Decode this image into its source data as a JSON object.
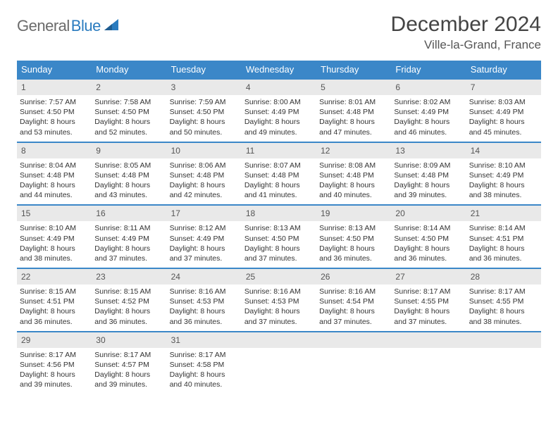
{
  "logo": {
    "general": "General",
    "blue": "Blue"
  },
  "title": "December 2024",
  "location": "Ville-la-Grand, France",
  "colors": {
    "header_bg": "#3b87c8",
    "header_fg": "#ffffff",
    "daynum_bg": "#e9e9e9",
    "border": "#3b87c8",
    "text": "#333333"
  },
  "day_names": [
    "Sunday",
    "Monday",
    "Tuesday",
    "Wednesday",
    "Thursday",
    "Friday",
    "Saturday"
  ],
  "weeks": [
    [
      {
        "n": "1",
        "sr": "Sunrise: 7:57 AM",
        "ss": "Sunset: 4:50 PM",
        "dl1": "Daylight: 8 hours",
        "dl2": "and 53 minutes."
      },
      {
        "n": "2",
        "sr": "Sunrise: 7:58 AM",
        "ss": "Sunset: 4:50 PM",
        "dl1": "Daylight: 8 hours",
        "dl2": "and 52 minutes."
      },
      {
        "n": "3",
        "sr": "Sunrise: 7:59 AM",
        "ss": "Sunset: 4:50 PM",
        "dl1": "Daylight: 8 hours",
        "dl2": "and 50 minutes."
      },
      {
        "n": "4",
        "sr": "Sunrise: 8:00 AM",
        "ss": "Sunset: 4:49 PM",
        "dl1": "Daylight: 8 hours",
        "dl2": "and 49 minutes."
      },
      {
        "n": "5",
        "sr": "Sunrise: 8:01 AM",
        "ss": "Sunset: 4:48 PM",
        "dl1": "Daylight: 8 hours",
        "dl2": "and 47 minutes."
      },
      {
        "n": "6",
        "sr": "Sunrise: 8:02 AM",
        "ss": "Sunset: 4:49 PM",
        "dl1": "Daylight: 8 hours",
        "dl2": "and 46 minutes."
      },
      {
        "n": "7",
        "sr": "Sunrise: 8:03 AM",
        "ss": "Sunset: 4:49 PM",
        "dl1": "Daylight: 8 hours",
        "dl2": "and 45 minutes."
      }
    ],
    [
      {
        "n": "8",
        "sr": "Sunrise: 8:04 AM",
        "ss": "Sunset: 4:48 PM",
        "dl1": "Daylight: 8 hours",
        "dl2": "and 44 minutes."
      },
      {
        "n": "9",
        "sr": "Sunrise: 8:05 AM",
        "ss": "Sunset: 4:48 PM",
        "dl1": "Daylight: 8 hours",
        "dl2": "and 43 minutes."
      },
      {
        "n": "10",
        "sr": "Sunrise: 8:06 AM",
        "ss": "Sunset: 4:48 PM",
        "dl1": "Daylight: 8 hours",
        "dl2": "and 42 minutes."
      },
      {
        "n": "11",
        "sr": "Sunrise: 8:07 AM",
        "ss": "Sunset: 4:48 PM",
        "dl1": "Daylight: 8 hours",
        "dl2": "and 41 minutes."
      },
      {
        "n": "12",
        "sr": "Sunrise: 8:08 AM",
        "ss": "Sunset: 4:48 PM",
        "dl1": "Daylight: 8 hours",
        "dl2": "and 40 minutes."
      },
      {
        "n": "13",
        "sr": "Sunrise: 8:09 AM",
        "ss": "Sunset: 4:48 PM",
        "dl1": "Daylight: 8 hours",
        "dl2": "and 39 minutes."
      },
      {
        "n": "14",
        "sr": "Sunrise: 8:10 AM",
        "ss": "Sunset: 4:49 PM",
        "dl1": "Daylight: 8 hours",
        "dl2": "and 38 minutes."
      }
    ],
    [
      {
        "n": "15",
        "sr": "Sunrise: 8:10 AM",
        "ss": "Sunset: 4:49 PM",
        "dl1": "Daylight: 8 hours",
        "dl2": "and 38 minutes."
      },
      {
        "n": "16",
        "sr": "Sunrise: 8:11 AM",
        "ss": "Sunset: 4:49 PM",
        "dl1": "Daylight: 8 hours",
        "dl2": "and 37 minutes."
      },
      {
        "n": "17",
        "sr": "Sunrise: 8:12 AM",
        "ss": "Sunset: 4:49 PM",
        "dl1": "Daylight: 8 hours",
        "dl2": "and 37 minutes."
      },
      {
        "n": "18",
        "sr": "Sunrise: 8:13 AM",
        "ss": "Sunset: 4:50 PM",
        "dl1": "Daylight: 8 hours",
        "dl2": "and 37 minutes."
      },
      {
        "n": "19",
        "sr": "Sunrise: 8:13 AM",
        "ss": "Sunset: 4:50 PM",
        "dl1": "Daylight: 8 hours",
        "dl2": "and 36 minutes."
      },
      {
        "n": "20",
        "sr": "Sunrise: 8:14 AM",
        "ss": "Sunset: 4:50 PM",
        "dl1": "Daylight: 8 hours",
        "dl2": "and 36 minutes."
      },
      {
        "n": "21",
        "sr": "Sunrise: 8:14 AM",
        "ss": "Sunset: 4:51 PM",
        "dl1": "Daylight: 8 hours",
        "dl2": "and 36 minutes."
      }
    ],
    [
      {
        "n": "22",
        "sr": "Sunrise: 8:15 AM",
        "ss": "Sunset: 4:51 PM",
        "dl1": "Daylight: 8 hours",
        "dl2": "and 36 minutes."
      },
      {
        "n": "23",
        "sr": "Sunrise: 8:15 AM",
        "ss": "Sunset: 4:52 PM",
        "dl1": "Daylight: 8 hours",
        "dl2": "and 36 minutes."
      },
      {
        "n": "24",
        "sr": "Sunrise: 8:16 AM",
        "ss": "Sunset: 4:53 PM",
        "dl1": "Daylight: 8 hours",
        "dl2": "and 36 minutes."
      },
      {
        "n": "25",
        "sr": "Sunrise: 8:16 AM",
        "ss": "Sunset: 4:53 PM",
        "dl1": "Daylight: 8 hours",
        "dl2": "and 37 minutes."
      },
      {
        "n": "26",
        "sr": "Sunrise: 8:16 AM",
        "ss": "Sunset: 4:54 PM",
        "dl1": "Daylight: 8 hours",
        "dl2": "and 37 minutes."
      },
      {
        "n": "27",
        "sr": "Sunrise: 8:17 AM",
        "ss": "Sunset: 4:55 PM",
        "dl1": "Daylight: 8 hours",
        "dl2": "and 37 minutes."
      },
      {
        "n": "28",
        "sr": "Sunrise: 8:17 AM",
        "ss": "Sunset: 4:55 PM",
        "dl1": "Daylight: 8 hours",
        "dl2": "and 38 minutes."
      }
    ],
    [
      {
        "n": "29",
        "sr": "Sunrise: 8:17 AM",
        "ss": "Sunset: 4:56 PM",
        "dl1": "Daylight: 8 hours",
        "dl2": "and 39 minutes."
      },
      {
        "n": "30",
        "sr": "Sunrise: 8:17 AM",
        "ss": "Sunset: 4:57 PM",
        "dl1": "Daylight: 8 hours",
        "dl2": "and 39 minutes."
      },
      {
        "n": "31",
        "sr": "Sunrise: 8:17 AM",
        "ss": "Sunset: 4:58 PM",
        "dl1": "Daylight: 8 hours",
        "dl2": "and 40 minutes."
      },
      null,
      null,
      null,
      null
    ]
  ]
}
